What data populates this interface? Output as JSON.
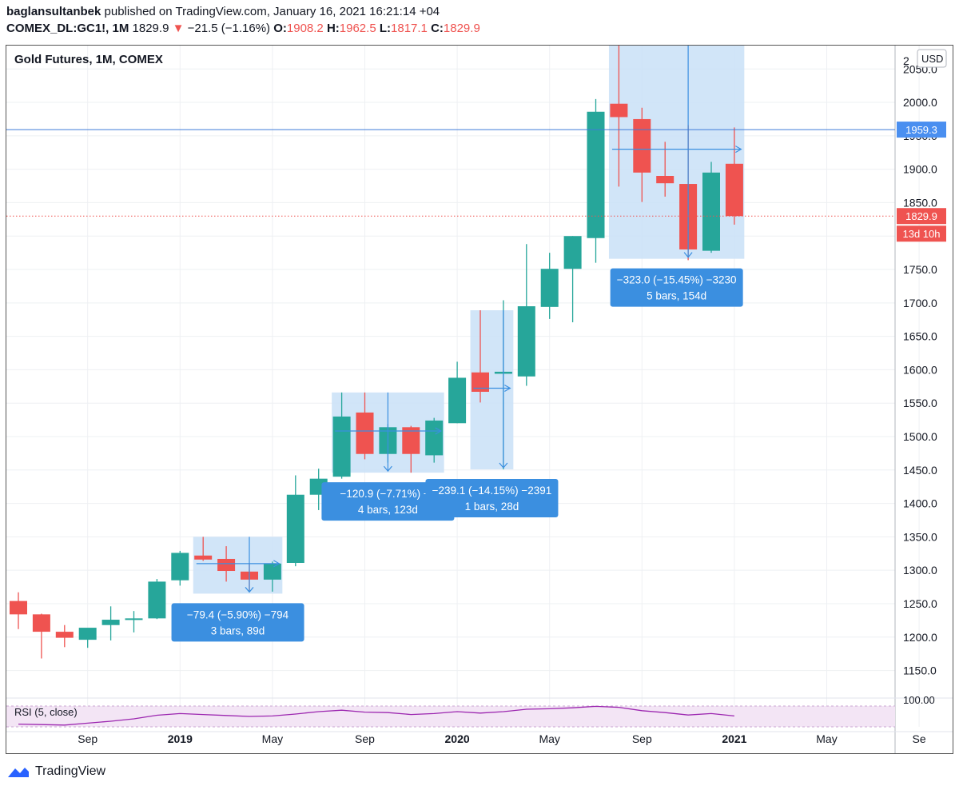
{
  "header": {
    "author": "baglansultanbek",
    "published_text": "published on TradingView.com, January 16, 2021 16:21:14 +04",
    "symbol": "COMEX_DL:GC1!, 1M",
    "last": "1829.9",
    "change": "−2",
    "change_tail": "1.5 (−1.16%)",
    "o_label": "O:",
    "o_value": "1908.2",
    "h_label": "H:",
    "h_value": "1962.5",
    "l_label": "L:",
    "l_value": "1817.1",
    "c_label": "C:",
    "c_value": "1829.9"
  },
  "footer": {
    "brand": "TradingView"
  },
  "colors": {
    "up": "#26a69a",
    "down": "#ef5350",
    "box": "#c9e0f7",
    "label": "#3b8fe0",
    "hline": "#2962ff",
    "rsi": "#9c27b0"
  },
  "chart_data": {
    "type": "candlestick",
    "title": "Gold Futures, 1M, COMEX",
    "currency": "USD",
    "ylim": [
      1110,
      2085
    ],
    "y_ticks": [
      1150,
      1200,
      1250,
      1300,
      1350,
      1400,
      1450,
      1500,
      1550,
      1600,
      1650,
      1700,
      1750,
      1800,
      1850,
      1900,
      1950,
      2000,
      2050
    ],
    "y_tick_labels": [
      "1150.0",
      "1200.0",
      "1250.0",
      "1300.0",
      "1350.0",
      "1400.0",
      "1450.0",
      "1500.0",
      "1550.0",
      "1600.0",
      "1650.0",
      "1700.0",
      "1750.0",
      "1800.0",
      "1850.0",
      "1900.0",
      "1950.0",
      "2000.0",
      "2050.0"
    ],
    "top_tick_label": "2",
    "x_tick_labels": [
      {
        "label": "Sep",
        "bold": false,
        "month": "2018-09"
      },
      {
        "label": "2019",
        "bold": true,
        "month": "2019-01"
      },
      {
        "label": "May",
        "bold": false,
        "month": "2019-05"
      },
      {
        "label": "Sep",
        "bold": false,
        "month": "2019-09"
      },
      {
        "label": "2020",
        "bold": true,
        "month": "2020-01"
      },
      {
        "label": "May",
        "bold": false,
        "month": "2020-05"
      },
      {
        "label": "Sep",
        "bold": false,
        "month": "2020-09"
      },
      {
        "label": "2021",
        "bold": true,
        "month": "2021-01"
      },
      {
        "label": "May",
        "bold": false,
        "month": "2021-05"
      },
      {
        "label": "Se",
        "bold": false,
        "month": "2021-09"
      }
    ],
    "candles": [
      {
        "month": "2018-06",
        "o": 1254,
        "h": 1267,
        "l": 1212,
        "c": 1234
      },
      {
        "month": "2018-07",
        "o": 1234,
        "h": 1235,
        "l": 1168,
        "c": 1208
      },
      {
        "month": "2018-08",
        "o": 1208,
        "h": 1218,
        "l": 1185,
        "c": 1199
      },
      {
        "month": "2018-09",
        "o": 1196,
        "h": 1212,
        "l": 1184,
        "c": 1214
      },
      {
        "month": "2018-10",
        "o": 1218,
        "h": 1246,
        "l": 1195,
        "c": 1226
      },
      {
        "month": "2018-11",
        "o": 1228,
        "h": 1239,
        "l": 1207,
        "c": 1228
      },
      {
        "month": "2018-12",
        "o": 1228,
        "h": 1287,
        "l": 1227,
        "c": 1283
      },
      {
        "month": "2019-01",
        "o": 1285,
        "h": 1329,
        "l": 1277,
        "c": 1326
      },
      {
        "month": "2019-02",
        "o": 1322,
        "h": 1350,
        "l": 1314,
        "c": 1316
      },
      {
        "month": "2019-03",
        "o": 1317,
        "h": 1336,
        "l": 1283,
        "c": 1299
      },
      {
        "month": "2019-04",
        "o": 1298,
        "h": 1311,
        "l": 1268,
        "c": 1286
      },
      {
        "month": "2019-05",
        "o": 1286,
        "h": 1313,
        "l": 1268,
        "c": 1310
      },
      {
        "month": "2019-06",
        "o": 1311,
        "h": 1442,
        "l": 1306,
        "c": 1413
      },
      {
        "month": "2019-07",
        "o": 1413,
        "h": 1452,
        "l": 1390,
        "c": 1437
      },
      {
        "month": "2019-08",
        "o": 1440,
        "h": 1566,
        "l": 1437,
        "c": 1530
      },
      {
        "month": "2019-09",
        "o": 1536,
        "h": 1566,
        "l": 1466,
        "c": 1474
      },
      {
        "month": "2019-10",
        "o": 1474,
        "h": 1519,
        "l": 1461,
        "c": 1514
      },
      {
        "month": "2019-11",
        "o": 1514,
        "h": 1516,
        "l": 1446,
        "c": 1474
      },
      {
        "month": "2019-12",
        "o": 1472,
        "h": 1528,
        "l": 1461,
        "c": 1524
      },
      {
        "month": "2020-01",
        "o": 1520,
        "h": 1612,
        "l": 1520,
        "c": 1588
      },
      {
        "month": "2020-02",
        "o": 1596,
        "h": 1689,
        "l": 1551,
        "c": 1567
      },
      {
        "month": "2020-03",
        "o": 1594,
        "h": 1704,
        "l": 1451,
        "c": 1597
      },
      {
        "month": "2020-04",
        "o": 1590,
        "h": 1788,
        "l": 1576,
        "c": 1695
      },
      {
        "month": "2020-05",
        "o": 1694,
        "h": 1775,
        "l": 1676,
        "c": 1751
      },
      {
        "month": "2020-06",
        "o": 1751,
        "h": 1800,
        "l": 1671,
        "c": 1800
      },
      {
        "month": "2020-07",
        "o": 1797,
        "h": 2005,
        "l": 1760,
        "c": 1986
      },
      {
        "month": "2020-08",
        "o": 1998,
        "h": 2089,
        "l": 1874,
        "c": 1978
      },
      {
        "month": "2020-09",
        "o": 1975,
        "h": 1992,
        "l": 1851,
        "c": 1895
      },
      {
        "month": "2020-10",
        "o": 1890,
        "h": 1941,
        "l": 1859,
        "c": 1879
      },
      {
        "month": "2020-11",
        "o": 1878,
        "h": 1966,
        "l": 1764,
        "c": 1780
      },
      {
        "month": "2020-12",
        "o": 1778,
        "h": 1911,
        "l": 1775,
        "c": 1895
      },
      {
        "month": "2021-01",
        "o": 1908.2,
        "h": 1962.5,
        "l": 1817.1,
        "c": 1829.9
      }
    ],
    "price_lines": [
      {
        "price": 1959.3,
        "label": "1959.3",
        "style": "solid"
      },
      {
        "price": 1829.9,
        "label": "1829.9",
        "style": "dotted"
      }
    ],
    "countdown_label": "13d 10h",
    "measurements": [
      {
        "from": "2019-02",
        "to": "2019-05",
        "top": 1350,
        "bottom": 1265,
        "arrow_month": "2019-04",
        "line1": "−79.4 (−5.90%) −794",
        "line2": "3 bars, 89d"
      },
      {
        "from": "2019-08",
        "to": "2019-12",
        "top": 1566,
        "bottom": 1446,
        "arrow_month": "2019-10",
        "line1": "−120.9 (−7.71%) −1",
        "line2": "4 bars, 123d"
      },
      {
        "from": "2020-02",
        "to": "2020-03",
        "top": 1689,
        "bottom": 1451,
        "arrow_month": "2020-03",
        "line1": "−239.1 (−14.15%) −2391",
        "line2": "1 bars, 28d"
      },
      {
        "from": "2020-08",
        "to": "2021-01",
        "top": 2089,
        "bottom": 1766,
        "arrow_month": "2020-11",
        "line1": "−323.0 (−15.45%) −3230",
        "line2": "5 bars, 154d"
      }
    ],
    "rsi": {
      "label": "RSI (5, close)",
      "level_label": "100.00",
      "values": [
        18,
        16,
        14,
        22,
        30,
        40,
        55,
        62,
        58,
        54,
        50,
        52,
        60,
        70,
        76,
        68,
        66,
        58,
        62,
        70,
        64,
        70,
        80,
        82,
        86,
        92,
        88,
        74,
        66,
        56,
        62,
        52
      ]
    }
  }
}
